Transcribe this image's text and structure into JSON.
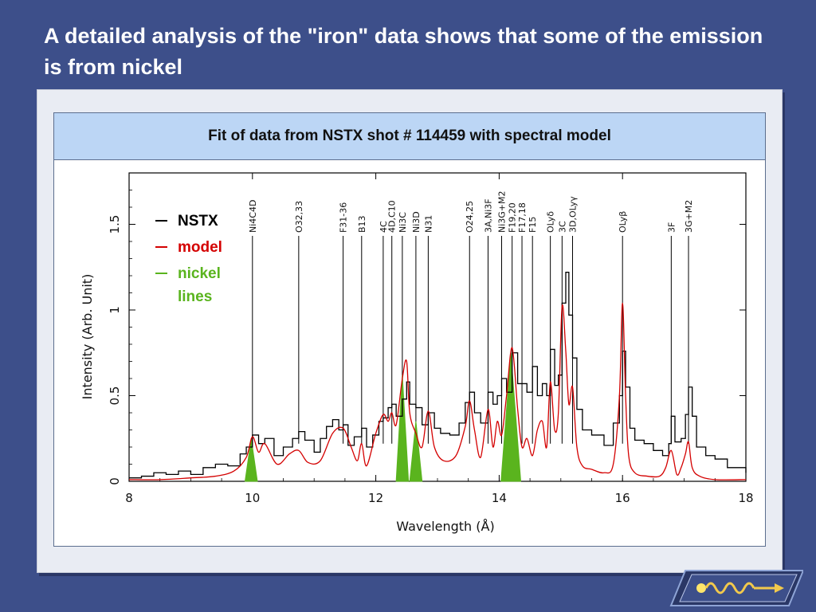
{
  "slide": {
    "title": "A detailed analysis of the \"iron\" data shows that some of the emission is from nickel"
  },
  "colors": {
    "background": "#3d4f8a",
    "header_band": "#bcd6f5",
    "nstx": "#000000",
    "model": "#d40000",
    "nickel": "#5ab41e"
  },
  "logo": {
    "icon": "wave-arrow-icon"
  },
  "chart_data": {
    "type": "line",
    "title": "Fit of data from NSTX shot # 114459 with spectral model",
    "xlabel": "Wavelength (Å)",
    "ylabel": "Intensity (Arb. Unit)",
    "xlim": [
      8,
      18
    ],
    "ylim": [
      0,
      1.8
    ],
    "x_ticks": [
      8,
      10,
      12,
      14,
      16,
      18
    ],
    "y_ticks": [
      "0",
      "0.5",
      "1",
      "1.5"
    ],
    "legend": {
      "placement": "top-left",
      "entries": [
        {
          "label": "NSTX",
          "color": "#000000"
        },
        {
          "label": "model",
          "color": "#d40000"
        },
        {
          "label": "nickel lines",
          "color": "#5ab41e"
        }
      ]
    },
    "line_labels": [
      {
        "x": 10.0,
        "label": "Ni4C4D"
      },
      {
        "x": 10.75,
        "label": "O32,33"
      },
      {
        "x": 11.47,
        "label": "F31-36"
      },
      {
        "x": 11.77,
        "label": "B13"
      },
      {
        "x": 12.12,
        "label": "4C"
      },
      {
        "x": 12.26,
        "label": "4D,C10"
      },
      {
        "x": 12.43,
        "label": "Ni3C"
      },
      {
        "x": 12.65,
        "label": "Ni3D"
      },
      {
        "x": 12.85,
        "label": "N31"
      },
      {
        "x": 13.52,
        "label": "O24,25"
      },
      {
        "x": 13.82,
        "label": "3A,Ni3F"
      },
      {
        "x": 14.04,
        "label": "Ni3G+M2"
      },
      {
        "x": 14.21,
        "label": "F19,20"
      },
      {
        "x": 14.37,
        "label": "F17,18"
      },
      {
        "x": 14.54,
        "label": "F15"
      },
      {
        "x": 14.83,
        "label": "OLyδ"
      },
      {
        "x": 15.02,
        "label": "3C"
      },
      {
        "x": 15.19,
        "label": "3D,OLyγ"
      },
      {
        "x": 16.0,
        "label": "OLyβ"
      },
      {
        "x": 16.79,
        "label": "3F"
      },
      {
        "x": 17.07,
        "label": "3G+M2"
      }
    ],
    "series": [
      {
        "name": "NSTX",
        "color": "#000000",
        "x": [
          8.0,
          8.2,
          8.4,
          8.6,
          8.8,
          9.0,
          9.2,
          9.4,
          9.6,
          9.8,
          9.9,
          10.0,
          10.1,
          10.2,
          10.35,
          10.5,
          10.65,
          10.75,
          10.85,
          11.0,
          11.1,
          11.2,
          11.3,
          11.4,
          11.47,
          11.55,
          11.65,
          11.77,
          11.85,
          11.95,
          12.05,
          12.12,
          12.2,
          12.26,
          12.33,
          12.43,
          12.5,
          12.55,
          12.65,
          12.75,
          12.85,
          12.95,
          13.05,
          13.2,
          13.35,
          13.45,
          13.52,
          13.6,
          13.7,
          13.82,
          13.9,
          13.97,
          14.04,
          14.12,
          14.21,
          14.3,
          14.37,
          14.45,
          14.54,
          14.62,
          14.7,
          14.77,
          14.83,
          14.9,
          14.96,
          15.02,
          15.08,
          15.13,
          15.19,
          15.26,
          15.35,
          15.5,
          15.7,
          15.85,
          15.95,
          16.0,
          16.05,
          16.12,
          16.2,
          16.35,
          16.5,
          16.65,
          16.75,
          16.79,
          16.85,
          16.95,
          17.02,
          17.07,
          17.13,
          17.2,
          17.35,
          17.5,
          17.7,
          17.9,
          18.0
        ],
        "y": [
          0.02,
          0.03,
          0.05,
          0.04,
          0.06,
          0.04,
          0.08,
          0.1,
          0.09,
          0.16,
          0.2,
          0.27,
          0.22,
          0.25,
          0.15,
          0.2,
          0.25,
          0.29,
          0.24,
          0.17,
          0.25,
          0.32,
          0.36,
          0.3,
          0.33,
          0.21,
          0.26,
          0.31,
          0.2,
          0.27,
          0.35,
          0.37,
          0.43,
          0.45,
          0.38,
          0.48,
          0.58,
          0.45,
          0.43,
          0.33,
          0.4,
          0.31,
          0.28,
          0.27,
          0.34,
          0.46,
          0.52,
          0.4,
          0.34,
          0.52,
          0.45,
          0.5,
          0.6,
          0.52,
          0.75,
          0.57,
          0.57,
          0.52,
          0.67,
          0.5,
          0.57,
          0.5,
          0.77,
          0.56,
          0.62,
          1.04,
          1.22,
          0.97,
          0.72,
          0.42,
          0.3,
          0.27,
          0.21,
          0.34,
          0.5,
          0.76,
          0.55,
          0.31,
          0.24,
          0.22,
          0.18,
          0.15,
          0.22,
          0.38,
          0.23,
          0.25,
          0.39,
          0.55,
          0.38,
          0.2,
          0.15,
          0.13,
          0.08,
          0.08,
          0.05
        ]
      },
      {
        "name": "model",
        "color": "#d40000",
        "x": [
          8.0,
          8.5,
          9.0,
          9.4,
          9.7,
          9.9,
          10.0,
          10.1,
          10.2,
          10.4,
          10.6,
          10.75,
          10.9,
          11.1,
          11.3,
          11.47,
          11.6,
          11.7,
          11.77,
          11.85,
          12.0,
          12.12,
          12.2,
          12.26,
          12.33,
          12.43,
          12.5,
          12.55,
          12.65,
          12.75,
          12.85,
          12.95,
          13.1,
          13.3,
          13.45,
          13.52,
          13.6,
          13.7,
          13.82,
          13.9,
          13.97,
          14.04,
          14.12,
          14.21,
          14.3,
          14.37,
          14.45,
          14.54,
          14.62,
          14.7,
          14.77,
          14.83,
          14.9,
          14.96,
          15.02,
          15.08,
          15.13,
          15.19,
          15.26,
          15.35,
          15.5,
          15.7,
          15.85,
          15.95,
          16.0,
          16.05,
          16.1,
          16.2,
          16.4,
          16.6,
          16.7,
          16.79,
          16.88,
          16.95,
          17.02,
          17.07,
          17.13,
          17.25,
          17.5,
          18.0
        ],
        "y": [
          0.01,
          0.01,
          0.02,
          0.03,
          0.06,
          0.14,
          0.26,
          0.17,
          0.22,
          0.1,
          0.16,
          0.18,
          0.11,
          0.12,
          0.28,
          0.31,
          0.2,
          0.12,
          0.22,
          0.09,
          0.28,
          0.39,
          0.35,
          0.4,
          0.33,
          0.6,
          0.7,
          0.4,
          0.28,
          0.2,
          0.41,
          0.2,
          0.12,
          0.15,
          0.32,
          0.47,
          0.3,
          0.14,
          0.42,
          0.2,
          0.35,
          0.27,
          0.5,
          0.78,
          0.42,
          0.2,
          0.25,
          0.15,
          0.3,
          0.35,
          0.2,
          0.58,
          0.3,
          0.4,
          1.02,
          0.76,
          0.45,
          0.55,
          0.2,
          0.09,
          0.07,
          0.05,
          0.1,
          0.5,
          1.04,
          0.5,
          0.15,
          0.05,
          0.03,
          0.03,
          0.08,
          0.18,
          0.04,
          0.08,
          0.16,
          0.23,
          0.08,
          0.03,
          0.01,
          0.01
        ]
      },
      {
        "name": "nickel lines",
        "color": "#5ab41e",
        "x": [
          9.98,
          12.43,
          12.65,
          14.19
        ],
        "y": [
          0.25,
          0.62,
          0.35,
          0.75
        ]
      }
    ]
  }
}
